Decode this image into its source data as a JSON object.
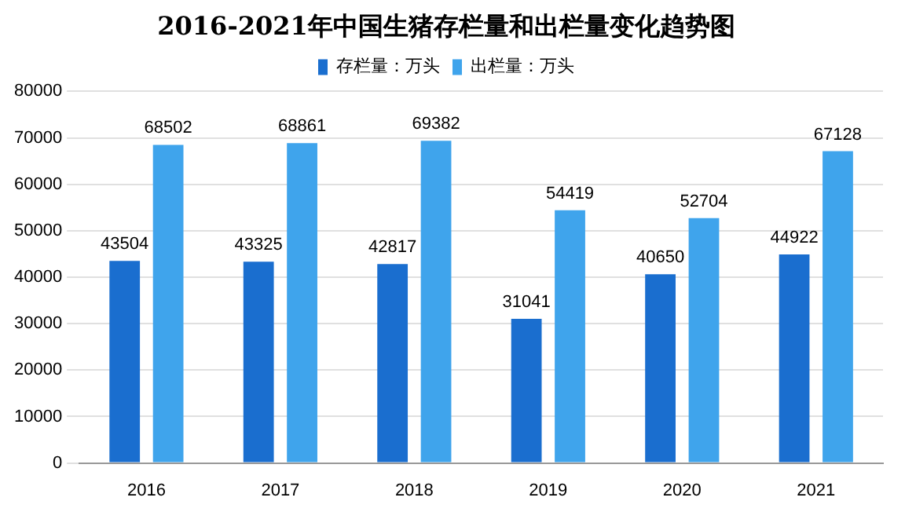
{
  "chart_data": {
    "type": "bar",
    "title": "2016-2021年中国生猪存栏量和出栏量变化趋势图",
    "categories": [
      "2016",
      "2017",
      "2018",
      "2019",
      "2020",
      "2021"
    ],
    "series": [
      {
        "name": "存栏量：万头",
        "color": "#1a6ecf",
        "values": [
          43504,
          43325,
          42817,
          31041,
          40650,
          44922
        ]
      },
      {
        "name": "出栏量：万头",
        "color": "#3fa4ec",
        "values": [
          68502,
          68861,
          69382,
          54419,
          52704,
          67128
        ]
      }
    ],
    "ylim": [
      0,
      80000
    ],
    "yticks": [
      0,
      10000,
      20000,
      30000,
      40000,
      50000,
      60000,
      70000,
      80000
    ],
    "grid": "y",
    "legend": "top",
    "data_labels": true
  }
}
